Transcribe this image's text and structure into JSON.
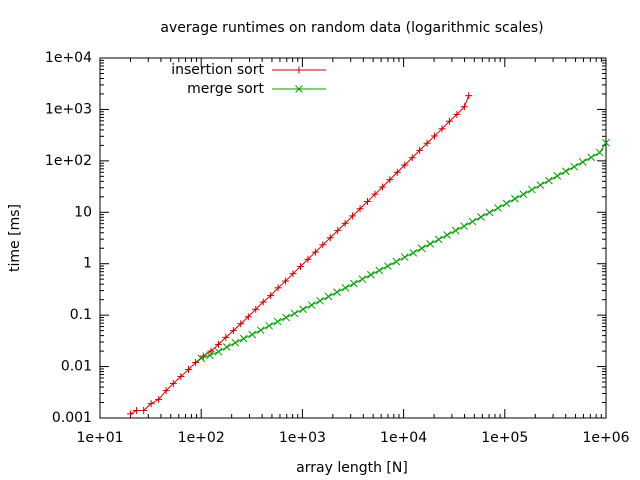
{
  "chart_data": {
    "type": "line",
    "title": "average runtimes on random data (logarithmic scales)",
    "xlabel": "array length [N]",
    "ylabel": "time [ms]",
    "xscale": "log",
    "yscale": "log",
    "xlim": [
      10,
      1000000
    ],
    "ylim": [
      0.001,
      10000
    ],
    "x_ticks": [
      {
        "value": 10,
        "label": "1e+01"
      },
      {
        "value": 100,
        "label": "1e+02"
      },
      {
        "value": 1000,
        "label": "1e+03"
      },
      {
        "value": 10000,
        "label": "1e+04"
      },
      {
        "value": 100000,
        "label": "1e+05"
      },
      {
        "value": 1000000,
        "label": "1e+06"
      }
    ],
    "y_ticks": [
      {
        "value": 0.001,
        "label": "0.001"
      },
      {
        "value": 0.01,
        "label": "0.01"
      },
      {
        "value": 0.1,
        "label": "0.1"
      },
      {
        "value": 1,
        "label": "1"
      },
      {
        "value": 10,
        "label": "10"
      },
      {
        "value": 100,
        "label": "1e+02"
      },
      {
        "value": 1000,
        "label": "1e+03"
      },
      {
        "value": 10000,
        "label": "1e+04"
      }
    ],
    "grid": false,
    "legend_position": "top-left",
    "series": [
      {
        "name": "insertion sort",
        "color": "#cc0000",
        "marker": "plus",
        "points": [
          [
            20,
            0.0012
          ],
          [
            23,
            0.0014
          ],
          [
            27,
            0.0014
          ],
          [
            32,
            0.0019
          ],
          [
            38,
            0.0023
          ],
          [
            45,
            0.0034
          ],
          [
            53,
            0.0047
          ],
          [
            63,
            0.0064
          ],
          [
            75,
            0.0088
          ],
          [
            88,
            0.012
          ],
          [
            105,
            0.016
          ],
          [
            125,
            0.02
          ],
          [
            148,
            0.027
          ],
          [
            175,
            0.037
          ],
          [
            208,
            0.05
          ],
          [
            246,
            0.068
          ],
          [
            292,
            0.093
          ],
          [
            346,
            0.13
          ],
          [
            410,
            0.18
          ],
          [
            486,
            0.24
          ],
          [
            575,
            0.34
          ],
          [
            682,
            0.46
          ],
          [
            808,
            0.64
          ],
          [
            957,
            0.88
          ],
          [
            1134,
            1.22
          ],
          [
            1343,
            1.68
          ],
          [
            1591,
            2.33
          ],
          [
            1885,
            3.2
          ],
          [
            2233,
            4.4
          ],
          [
            2646,
            6.1
          ],
          [
            3134,
            8.5
          ],
          [
            3713,
            11.7
          ],
          [
            4398,
            16.2
          ],
          [
            5210,
            22.5
          ],
          [
            6173,
            31
          ],
          [
            7313,
            43
          ],
          [
            8664,
            60
          ],
          [
            10264,
            83
          ],
          [
            12160,
            115
          ],
          [
            14406,
            160
          ],
          [
            17067,
            220
          ],
          [
            20219,
            305
          ],
          [
            23953,
            420
          ],
          [
            28378,
            590
          ],
          [
            33620,
            800
          ],
          [
            39829,
            1130
          ],
          [
            44000,
            1850
          ]
        ]
      },
      {
        "name": "merge sort",
        "color": "#00a000",
        "marker": "cross",
        "points": [
          [
            100,
            0.0145
          ],
          [
            122,
            0.0165
          ],
          [
            148,
            0.0195
          ],
          [
            179,
            0.024
          ],
          [
            217,
            0.029
          ],
          [
            263,
            0.035
          ],
          [
            319,
            0.042
          ],
          [
            387,
            0.051
          ],
          [
            469,
            0.062
          ],
          [
            569,
            0.075
          ],
          [
            690,
            0.09
          ],
          [
            837,
            0.108
          ],
          [
            1015,
            0.13
          ],
          [
            1231,
            0.157
          ],
          [
            1492,
            0.19
          ],
          [
            1810,
            0.23
          ],
          [
            2195,
            0.28
          ],
          [
            2662,
            0.34
          ],
          [
            3228,
            0.41
          ],
          [
            3914,
            0.5
          ],
          [
            4747,
            0.61
          ],
          [
            5756,
            0.74
          ],
          [
            6980,
            0.9
          ],
          [
            8465,
            1.1
          ],
          [
            10265,
            1.34
          ],
          [
            12448,
            1.63
          ],
          [
            15096,
            1.99
          ],
          [
            18306,
            2.43
          ],
          [
            22200,
            2.96
          ],
          [
            26921,
            3.62
          ],
          [
            32646,
            4.42
          ],
          [
            39589,
            5.4
          ],
          [
            48008,
            6.6
          ],
          [
            58218,
            8.1
          ],
          [
            70599,
            9.9
          ],
          [
            85613,
            12.1
          ],
          [
            103820,
            14.9
          ],
          [
            125898,
            18.3
          ],
          [
            152672,
            22.4
          ],
          [
            185140,
            27.5
          ],
          [
            224513,
            33.8
          ],
          [
            272259,
            41.5
          ],
          [
            330158,
            51
          ],
          [
            400372,
            62.7
          ],
          [
            485518,
            77
          ],
          [
            588770,
            95
          ],
          [
            713978,
            117
          ],
          [
            865813,
            145
          ],
          [
            1000000,
            225
          ]
        ]
      }
    ]
  }
}
